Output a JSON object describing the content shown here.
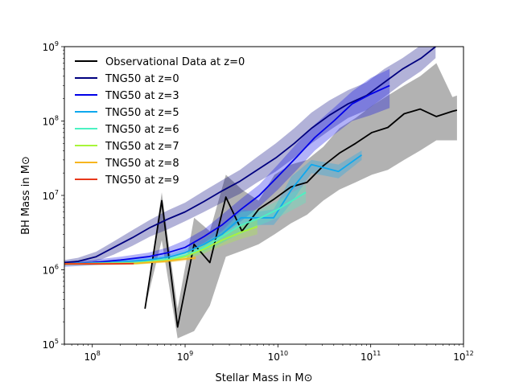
{
  "chart_data": {
    "type": "line",
    "title": "",
    "xlabel": "Stellar Mass in M⊙",
    "ylabel": "BH Mass in M⊙",
    "xscale": "log",
    "yscale": "log",
    "xlim": [
      50000000,
      1000000000000
    ],
    "ylim": [
      100000,
      1000000000
    ],
    "grid": false,
    "legend_position": "upper-left",
    "x_ticks": [
      {
        "value": 100000000,
        "base": "10",
        "exp": "8"
      },
      {
        "value": 1000000000,
        "base": "10",
        "exp": "9"
      },
      {
        "value": 10000000000,
        "base": "10",
        "exp": "10"
      },
      {
        "value": 100000000000,
        "base": "10",
        "exp": "11"
      },
      {
        "value": 1000000000000,
        "base": "10",
        "exp": "12"
      }
    ],
    "y_ticks": [
      {
        "value": 100000,
        "base": "10",
        "exp": "5"
      },
      {
        "value": 1000000,
        "base": "10",
        "exp": "6"
      },
      {
        "value": 10000000,
        "base": "10",
        "exp": "7"
      },
      {
        "value": 100000000,
        "base": "10",
        "exp": "8"
      },
      {
        "value": 1000000000,
        "base": "10",
        "exp": "9"
      }
    ],
    "series": [
      {
        "name": "Observational Data at z=0",
        "color": "#000000",
        "band_opacity": 0.3,
        "points": [
          {
            "x": 370000000,
            "y": 300000,
            "lo": 300000,
            "hi": 300000
          },
          {
            "x": 560000000,
            "y": 8500000,
            "lo": 2500000,
            "hi": 11000000
          },
          {
            "x": 830000000,
            "y": 170000,
            "lo": 120000,
            "hi": 300000
          },
          {
            "x": 1250000000,
            "y": 2200000,
            "lo": 150000,
            "hi": 5000000
          },
          {
            "x": 1850000000,
            "y": 1250000,
            "lo": 330000,
            "hi": 3300000
          },
          {
            "x": 2750000000,
            "y": 9500000,
            "lo": 1500000,
            "hi": 19000000
          },
          {
            "x": 4100000000,
            "y": 3300000,
            "lo": 1800000,
            "hi": 12000000
          },
          {
            "x": 6200000000,
            "y": 6500000,
            "lo": 2200000,
            "hi": 8500000
          },
          {
            "x": 9200000000,
            "y": 9000000,
            "lo": 3000000,
            "hi": 19000000
          },
          {
            "x": 13800000000,
            "y": 13000000,
            "lo": 4200000,
            "hi": 26000000
          },
          {
            "x": 20600000000,
            "y": 15000000,
            "lo": 5500000,
            "hi": 30000000
          },
          {
            "x": 30800000000,
            "y": 25000000,
            "lo": 8500000,
            "hi": 45000000
          },
          {
            "x": 46000000000,
            "y": 37000000,
            "lo": 12000000,
            "hi": 80000000
          },
          {
            "x": 68700000000,
            "y": 50000000,
            "lo": 15000000,
            "hi": 110000000
          },
          {
            "x": 103000000000,
            "y": 70000000,
            "lo": 19000000,
            "hi": 160000000
          },
          {
            "x": 153000000000,
            "y": 82000000,
            "lo": 22000000,
            "hi": 220000000
          },
          {
            "x": 229000000000,
            "y": 125000000,
            "lo": 30000000,
            "hi": 300000000
          },
          {
            "x": 341000000000,
            "y": 145000000,
            "lo": 40000000,
            "hi": 400000000
          },
          {
            "x": 510000000000,
            "y": 115000000,
            "lo": 55000000,
            "hi": 600000000
          },
          {
            "x": 760000000000,
            "y": 135000000,
            "lo": 55000000,
            "hi": 210000000
          },
          {
            "x": 850000000000,
            "y": 140000000,
            "lo": 55000000,
            "hi": 220000000
          }
        ]
      },
      {
        "name": "TNG50 at z=0",
        "color": "#00007f",
        "band_opacity": 0.3,
        "points": [
          {
            "x": 50000000,
            "y": 1250000,
            "lo": 1150000,
            "hi": 1350000
          },
          {
            "x": 70000000,
            "y": 1300000,
            "lo": 1200000,
            "hi": 1450000
          },
          {
            "x": 110000000,
            "y": 1500000,
            "lo": 1300000,
            "hi": 1750000
          },
          {
            "x": 170000000,
            "y": 2000000,
            "lo": 1600000,
            "hi": 2400000
          },
          {
            "x": 270000000,
            "y": 2700000,
            "lo": 2100000,
            "hi": 3400000
          },
          {
            "x": 420000000,
            "y": 3700000,
            "lo": 2800000,
            "hi": 4700000
          },
          {
            "x": 650000000,
            "y": 4800000,
            "lo": 3500000,
            "hi": 6300000
          },
          {
            "x": 1000000000,
            "y": 6000000,
            "lo": 4500000,
            "hi": 8000000
          },
          {
            "x": 1600000000,
            "y": 8300000,
            "lo": 6000000,
            "hi": 11500000
          },
          {
            "x": 2500000000,
            "y": 11500000,
            "lo": 8000000,
            "hi": 16000000
          },
          {
            "x": 3900000000,
            "y": 15500000,
            "lo": 10500000,
            "hi": 22000000
          },
          {
            "x": 6000000000,
            "y": 22000000,
            "lo": 15000000,
            "hi": 33000000
          },
          {
            "x": 9500000000,
            "y": 32000000,
            "lo": 21000000,
            "hi": 50000000
          },
          {
            "x": 15000000000,
            "y": 50000000,
            "lo": 32000000,
            "hi": 80000000
          },
          {
            "x": 23000000000,
            "y": 80000000,
            "lo": 50000000,
            "hi": 130000000
          },
          {
            "x": 36000000000,
            "y": 120000000,
            "lo": 75000000,
            "hi": 190000000
          },
          {
            "x": 57000000000,
            "y": 170000000,
            "lo": 110000000,
            "hi": 260000000
          },
          {
            "x": 90000000000,
            "y": 220000000,
            "lo": 140000000,
            "hi": 330000000
          },
          {
            "x": 140000000000,
            "y": 330000000,
            "lo": 210000000,
            "hi": 500000000
          },
          {
            "x": 220000000000,
            "y": 500000000,
            "lo": 320000000,
            "hi": 700000000
          },
          {
            "x": 350000000000,
            "y": 700000000,
            "lo": 470000000,
            "hi": 1050000000
          },
          {
            "x": 500000000000,
            "y": 1000000000,
            "lo": 700000000,
            "hi": 1300000000
          }
        ]
      },
      {
        "name": "TNG50 at z=3",
        "color": "#0000e8",
        "band_opacity": 0.3,
        "points": [
          {
            "x": 50000000,
            "y": 1200000,
            "lo": 1100000,
            "hi": 1300000
          },
          {
            "x": 100000000,
            "y": 1250000,
            "lo": 1150000,
            "hi": 1350000
          },
          {
            "x": 200000000,
            "y": 1350000,
            "lo": 1200000,
            "hi": 1500000
          },
          {
            "x": 400000000,
            "y": 1500000,
            "lo": 1300000,
            "hi": 1700000
          },
          {
            "x": 650000000,
            "y": 1700000,
            "lo": 1450000,
            "hi": 2000000
          },
          {
            "x": 1000000000,
            "y": 2000000,
            "lo": 1700000,
            "hi": 2500000
          },
          {
            "x": 1600000000,
            "y": 2800000,
            "lo": 2200000,
            "hi": 3500000
          },
          {
            "x": 2500000000,
            "y": 4000000,
            "lo": 3000000,
            "hi": 5500000
          },
          {
            "x": 4000000000,
            "y": 6500000,
            "lo": 4500000,
            "hi": 9000000
          },
          {
            "x": 6300000000,
            "y": 10000000,
            "lo": 7000000,
            "hi": 14000000
          },
          {
            "x": 10000000000,
            "y": 18000000,
            "lo": 12000000,
            "hi": 26000000
          },
          {
            "x": 16000000000,
            "y": 33000000,
            "lo": 22000000,
            "hi": 50000000
          },
          {
            "x": 25000000000,
            "y": 60000000,
            "lo": 40000000,
            "hi": 90000000
          },
          {
            "x": 40000000000,
            "y": 100000000,
            "lo": 65000000,
            "hi": 150000000
          },
          {
            "x": 63000000000,
            "y": 170000000,
            "lo": 100000000,
            "hi": 250000000
          },
          {
            "x": 100000000000,
            "y": 230000000,
            "lo": 120000000,
            "hi": 380000000
          },
          {
            "x": 160000000000,
            "y": 300000000,
            "lo": 150000000,
            "hi": 500000000
          }
        ]
      },
      {
        "name": "TNG50 at z=5",
        "color": "#0ea8ee",
        "band_opacity": 0.3,
        "points": [
          {
            "x": 50000000,
            "y": 1200000,
            "lo": 1150000,
            "hi": 1250000
          },
          {
            "x": 150000000,
            "y": 1250000,
            "lo": 1180000,
            "hi": 1320000
          },
          {
            "x": 400000000,
            "y": 1350000,
            "lo": 1250000,
            "hi": 1450000
          },
          {
            "x": 700000000,
            "y": 1500000,
            "lo": 1350000,
            "hi": 1650000
          },
          {
            "x": 1000000000,
            "y": 1700000,
            "lo": 1500000,
            "hi": 1900000
          },
          {
            "x": 1600000000,
            "y": 2200000,
            "lo": 1800000,
            "hi": 2600000
          },
          {
            "x": 2500000000,
            "y": 3000000,
            "lo": 2300000,
            "hi": 3800000
          },
          {
            "x": 4000000000,
            "y": 5000000,
            "lo": 3200000,
            "hi": 6500000
          },
          {
            "x": 6000000000,
            "y": 5000000,
            "lo": 4000000,
            "hi": 6000000
          },
          {
            "x": 9000000000,
            "y": 5000000,
            "lo": 4000000,
            "hi": 6500000
          },
          {
            "x": 14000000000,
            "y": 12000000,
            "lo": 8000000,
            "hi": 18000000
          },
          {
            "x": 23000000000,
            "y": 26000000,
            "lo": 20000000,
            "hi": 30000000
          },
          {
            "x": 45000000000,
            "y": 21000000,
            "lo": 17000000,
            "hi": 26000000
          },
          {
            "x": 80000000000,
            "y": 35000000,
            "lo": 30000000,
            "hi": 40000000
          }
        ]
      },
      {
        "name": "TNG50 at z=6",
        "color": "#4cf2c2",
        "band_opacity": 0.3,
        "points": [
          {
            "x": 50000000,
            "y": 1200000,
            "lo": 1150000,
            "hi": 1250000
          },
          {
            "x": 300000000,
            "y": 1250000,
            "lo": 1180000,
            "hi": 1320000
          },
          {
            "x": 700000000,
            "y": 1400000,
            "lo": 1300000,
            "hi": 1500000
          },
          {
            "x": 1000000000,
            "y": 1550000,
            "lo": 1400000,
            "hi": 1700000
          },
          {
            "x": 1600000000,
            "y": 2000000,
            "lo": 1700000,
            "hi": 2300000
          },
          {
            "x": 2500000000,
            "y": 2800000,
            "lo": 2300000,
            "hi": 3300000
          },
          {
            "x": 4000000000,
            "y": 4000000,
            "lo": 3000000,
            "hi": 6000000
          },
          {
            "x": 6500000000,
            "y": 5000000,
            "lo": 4000000,
            "hi": 6500000
          },
          {
            "x": 10000000000,
            "y": 6500000,
            "lo": 5000000,
            "hi": 8500000
          },
          {
            "x": 20000000000,
            "y": 11000000,
            "lo": 8000000,
            "hi": 14000000
          }
        ]
      },
      {
        "name": "TNG50 at z=7",
        "color": "#a8f53a",
        "band_opacity": 0.3,
        "points": [
          {
            "x": 50000000,
            "y": 1200000,
            "lo": 1150000,
            "hi": 1250000
          },
          {
            "x": 300000000,
            "y": 1230000,
            "lo": 1180000,
            "hi": 1300000
          },
          {
            "x": 700000000,
            "y": 1350000,
            "lo": 1270000,
            "hi": 1450000
          },
          {
            "x": 1000000000,
            "y": 1500000,
            "lo": 1380000,
            "hi": 1650000
          },
          {
            "x": 1600000000,
            "y": 1900000,
            "lo": 1650000,
            "hi": 2200000
          },
          {
            "x": 2500000000,
            "y": 2500000,
            "lo": 2100000,
            "hi": 3000000
          },
          {
            "x": 4000000000,
            "y": 3200000,
            "lo": 2600000,
            "hi": 4000000
          },
          {
            "x": 6000000000,
            "y": 3800000,
            "lo": 3000000,
            "hi": 4800000
          }
        ]
      },
      {
        "name": "TNG50 at z=8",
        "color": "#f7b51f",
        "band_opacity": 0.3,
        "points": [
          {
            "x": 50000000,
            "y": 1200000,
            "lo": 1170000,
            "hi": 1230000
          },
          {
            "x": 300000000,
            "y": 1220000,
            "lo": 1180000,
            "hi": 1260000
          },
          {
            "x": 600000000,
            "y": 1300000,
            "lo": 1240000,
            "hi": 1360000
          },
          {
            "x": 900000000,
            "y": 1380000,
            "lo": 1300000,
            "hi": 1460000
          },
          {
            "x": 1300000000,
            "y": 1450000,
            "lo": 1370000,
            "hi": 1550000
          }
        ]
      },
      {
        "name": "TNG50 at z=9",
        "color": "#e8381a",
        "band_opacity": 0.3,
        "points": [
          {
            "x": 50000000,
            "y": 1200000,
            "lo": 1180000,
            "hi": 1220000
          },
          {
            "x": 150000000,
            "y": 1200000,
            "lo": 1180000,
            "hi": 1220000
          },
          {
            "x": 280000000,
            "y": 1210000,
            "lo": 1190000,
            "hi": 1230000
          }
        ]
      }
    ]
  }
}
